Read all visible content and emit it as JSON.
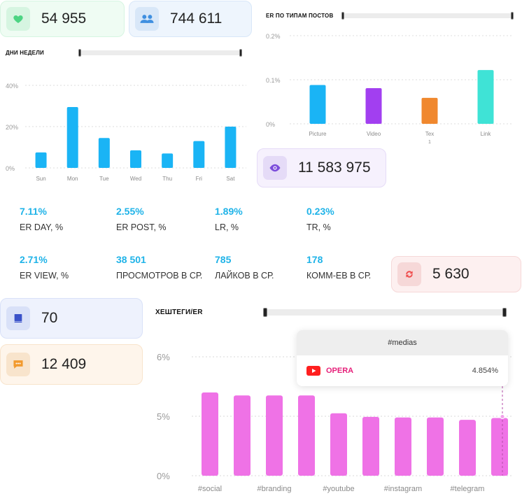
{
  "cards": {
    "likes": {
      "value": "54 955",
      "icon": "heart-icon",
      "color": "#4cd483",
      "bg": "#effcf3",
      "border": "#d6f5e1"
    },
    "followers": {
      "value": "744 611",
      "icon": "users-icon",
      "color": "#3f8fe0",
      "bg": "#eef5fd",
      "border": "#d8e7f8"
    },
    "views": {
      "value": "11 583 975",
      "icon": "eye-icon",
      "color": "#7c4ddb",
      "bg": "#f6f1fd",
      "border": "#e5dbf7"
    },
    "reposts": {
      "value": "5 630",
      "icon": "repost-icon",
      "color": "#ef4b4b",
      "bg": "#fdf0f0",
      "border": "#f6d8d8"
    },
    "posts": {
      "value": "70",
      "icon": "book-icon",
      "color": "#3a52c9",
      "bg": "#eef2fd",
      "border": "#d9e1f8"
    },
    "comments": {
      "value": "12 409",
      "icon": "comment-icon",
      "color": "#f29a2e",
      "bg": "#fef5eb",
      "border": "#f8e4cc"
    }
  },
  "weekday_chart": {
    "title": "ДНИ НЕДЕЛИ",
    "chart_data": {
      "type": "bar",
      "categories": [
        "Sun",
        "Mon",
        "Tue",
        "Wed",
        "Thu",
        "Fri",
        "Sat"
      ],
      "values": [
        7.5,
        29.5,
        14.5,
        8.5,
        7,
        13,
        20
      ],
      "yticks": [
        "0%",
        "20%",
        "40%"
      ],
      "ylim": [
        0,
        40
      ],
      "color": "#1ab4f5"
    }
  },
  "posttype_chart": {
    "title": "ER ПО ТИПАМ ПОСТОВ",
    "chart_data": {
      "type": "bar",
      "categories": [
        "Picture",
        "Video",
        "Tex\n1",
        "Link"
      ],
      "category_lines": [
        [
          "Picture"
        ],
        [
          "Video"
        ],
        [
          "Tex",
          "1"
        ],
        [
          "Link"
        ]
      ],
      "values": [
        0.088,
        0.081,
        0.059,
        0.122
      ],
      "yticks": [
        "0%",
        "0.1%",
        "0.2%"
      ],
      "ylim": [
        0,
        0.2
      ],
      "colors": [
        "#1ab4f5",
        "#a23ff0",
        "#f0882e",
        "#3fe3d6"
      ]
    }
  },
  "metrics": [
    {
      "value": "7.11%",
      "label": "ER DAY, %"
    },
    {
      "value": "2.55%",
      "label": "ER POST, %"
    },
    {
      "value": "1.89%",
      "label": "LR, %"
    },
    {
      "value": "0.23%",
      "label": "TR, %"
    },
    {
      "value": "2.71%",
      "label": "ER VIEW, %"
    },
    {
      "value": "38 501",
      "label": "ПРОСМОТРОВ В СР."
    },
    {
      "value": "785",
      "label": "ЛАЙКОВ В СР."
    },
    {
      "value": "178",
      "label": "КОММ-ЕВ В СР."
    }
  ],
  "hashtag_chart": {
    "title": "ХЕШТЕГИ/ER",
    "chart_data": {
      "type": "bar",
      "values": [
        5.4,
        5.35,
        5.35,
        5.35,
        5.05,
        4.95,
        4.9,
        4.9,
        4.7,
        4.854
      ],
      "xticks": [
        "#social",
        "#branding",
        "#youtube",
        "#instagram",
        "#telegram"
      ],
      "yticks": [
        "0%",
        "5%",
        "6%"
      ],
      "color": "#ef72e6"
    },
    "tooltip": {
      "title": "#medias",
      "platform": "OPERA",
      "value": "4.854%"
    }
  }
}
